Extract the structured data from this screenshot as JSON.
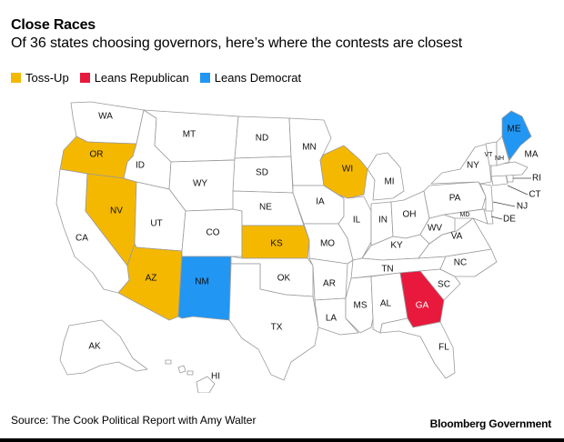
{
  "header": {
    "title": "Close Races",
    "subtitle": "Of 36 states choosing governors, here’s where the contests are closest"
  },
  "legend": [
    {
      "label": "Toss-Up",
      "color": "#f5b800"
    },
    {
      "label": "Leans Republican",
      "color": "#e8193c"
    },
    {
      "label": "Leans Democrat",
      "color": "#2196f3"
    }
  ],
  "map": {
    "default_fill": "#ffffff",
    "states": {
      "WA": {
        "label": "WA",
        "rating": ""
      },
      "OR": {
        "label": "OR",
        "rating": "Toss-Up"
      },
      "CA": {
        "label": "CA",
        "rating": ""
      },
      "NV": {
        "label": "NV",
        "rating": "Toss-Up"
      },
      "ID": {
        "label": "ID",
        "rating": ""
      },
      "MT": {
        "label": "MT",
        "rating": ""
      },
      "WY": {
        "label": "WY",
        "rating": ""
      },
      "UT": {
        "label": "UT",
        "rating": ""
      },
      "AZ": {
        "label": "AZ",
        "rating": "Toss-Up"
      },
      "CO": {
        "label": "CO",
        "rating": ""
      },
      "NM": {
        "label": "NM",
        "rating": "Leans Democrat"
      },
      "ND": {
        "label": "ND",
        "rating": ""
      },
      "SD": {
        "label": "SD",
        "rating": ""
      },
      "NE": {
        "label": "NE",
        "rating": ""
      },
      "KS": {
        "label": "KS",
        "rating": "Toss-Up"
      },
      "OK": {
        "label": "OK",
        "rating": ""
      },
      "TX": {
        "label": "TX",
        "rating": ""
      },
      "MN": {
        "label": "MN",
        "rating": ""
      },
      "IA": {
        "label": "IA",
        "rating": ""
      },
      "MO": {
        "label": "MO",
        "rating": ""
      },
      "AR": {
        "label": "AR",
        "rating": ""
      },
      "LA": {
        "label": "LA",
        "rating": ""
      },
      "WI": {
        "label": "WI",
        "rating": "Toss-Up"
      },
      "IL": {
        "label": "IL",
        "rating": ""
      },
      "MI": {
        "label": "MI",
        "rating": ""
      },
      "IN": {
        "label": "IN",
        "rating": ""
      },
      "OH": {
        "label": "OH",
        "rating": ""
      },
      "KY": {
        "label": "KY",
        "rating": ""
      },
      "TN": {
        "label": "TN",
        "rating": ""
      },
      "MS": {
        "label": "MS",
        "rating": ""
      },
      "AL": {
        "label": "AL",
        "rating": ""
      },
      "GA": {
        "label": "GA",
        "rating": "Leans Republican"
      },
      "FL": {
        "label": "FL",
        "rating": ""
      },
      "SC": {
        "label": "SC",
        "rating": ""
      },
      "NC": {
        "label": "NC",
        "rating": ""
      },
      "VA": {
        "label": "VA",
        "rating": ""
      },
      "WV": {
        "label": "WV",
        "rating": ""
      },
      "MD": {
        "label": "MD",
        "rating": ""
      },
      "DE": {
        "label": "DE",
        "rating": ""
      },
      "PA": {
        "label": "PA",
        "rating": ""
      },
      "NJ": {
        "label": "NJ",
        "rating": ""
      },
      "NY": {
        "label": "NY",
        "rating": ""
      },
      "CT": {
        "label": "CT",
        "rating": ""
      },
      "RI": {
        "label": "RI",
        "rating": ""
      },
      "MA": {
        "label": "MA",
        "rating": ""
      },
      "VT": {
        "label": "VT",
        "rating": ""
      },
      "NH": {
        "label": "NH",
        "rating": ""
      },
      "ME": {
        "label": "ME",
        "rating": "Leans Democrat"
      },
      "AK": {
        "label": "AK",
        "rating": ""
      },
      "HI": {
        "label": "HI",
        "rating": ""
      }
    }
  },
  "footer": {
    "source": "Source: The Cook Political Report with Amy Walter",
    "brand": "Bloomberg Government"
  }
}
